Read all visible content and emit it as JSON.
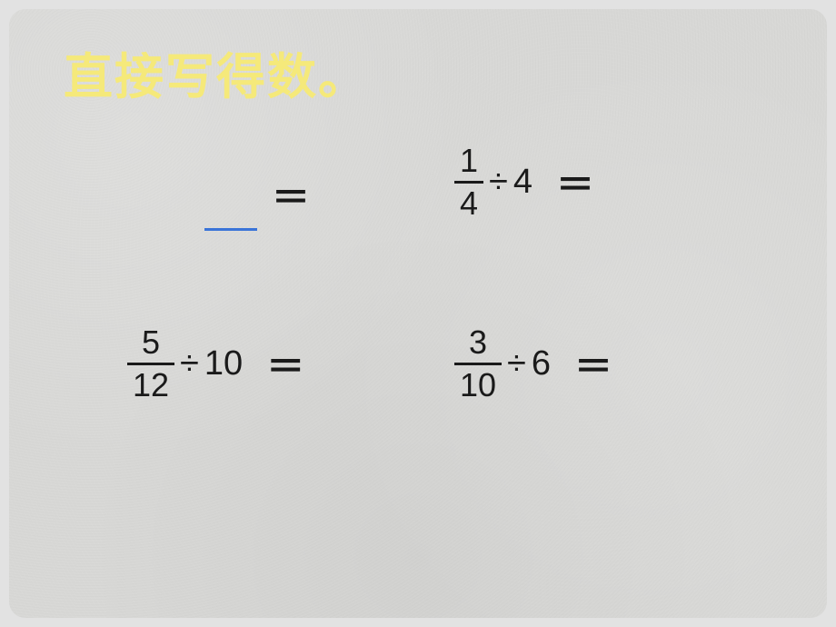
{
  "slide": {
    "title": "直接写得数。",
    "title_color": "#f5e97a",
    "title_fontsize": 54,
    "background_color": "#d8d8d6",
    "border_radius": 18
  },
  "equals_sign": "＝",
  "divide_sign": "÷",
  "problems": {
    "p1": {
      "has_fraction": false,
      "blank_underline": true,
      "underline_color": "#3a74d8",
      "equals": "＝"
    },
    "p2": {
      "fraction": {
        "numerator": "1",
        "denominator": "4"
      },
      "divide": "÷",
      "divisor": "4",
      "equals": "＝"
    },
    "p3": {
      "fraction": {
        "numerator": "5",
        "denominator": "12"
      },
      "divide": "÷",
      "divisor": "10",
      "equals": "＝"
    },
    "p4": {
      "fraction": {
        "numerator": "3",
        "denominator": "10"
      },
      "divide": "÷",
      "divisor": "6",
      "equals": "＝"
    }
  },
  "text_color": "#1a1a1a",
  "font_family": "Microsoft YaHei",
  "fraction_fontsize": 36,
  "operator_fontsize": 38
}
